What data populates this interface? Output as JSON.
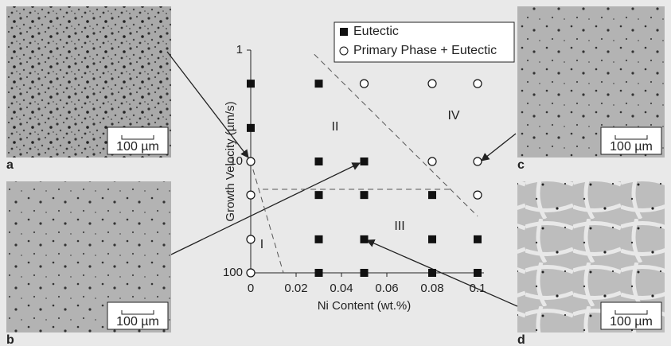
{
  "chart_data": {
    "type": "scatter",
    "xlabel": "Ni Content (wt.%)",
    "ylabel": "Growth Velocity (µm/s)",
    "xlim": [
      0,
      0.1
    ],
    "xticks": [
      0,
      0.02,
      0.04,
      0.06,
      0.08,
      0.1
    ],
    "ylim": [
      1,
      100
    ],
    "yticks": [
      1,
      10,
      100
    ],
    "y_log": true,
    "y_inverted": true,
    "legend": "top",
    "series": [
      {
        "name": "Eutectic",
        "color": "#111111",
        "marker": "square",
        "x": [
          0,
          0,
          0.03,
          0.03,
          0.05,
          0.03,
          0.05,
          0.08,
          0.03,
          0.05,
          0.08,
          0.1,
          0.03,
          0.05,
          0.08,
          0.1
        ],
        "values": [
          2,
          5,
          2,
          10,
          10,
          20,
          20,
          20,
          50,
          50,
          50,
          50,
          100,
          100,
          100,
          100
        ]
      },
      {
        "name": "Primary Phase + Eutectic",
        "color": "#111111",
        "marker": "circle",
        "x": [
          0,
          0,
          0,
          0,
          0.05,
          0.08,
          0.1,
          0.08,
          0.1,
          0.1
        ],
        "values": [
          10,
          20,
          50,
          100,
          2,
          2,
          2,
          10,
          10,
          20
        ]
      }
    ],
    "boundaries": [
      {
        "x": [
          0.001,
          0.0144
        ],
        "y": [
          11.8,
          100
        ]
      },
      {
        "x": [
          0.028,
          0.1
        ],
        "y": [
          1.09,
          31
        ]
      },
      {
        "x": [
          0.0053,
          0.0877
        ],
        "y": [
          17.8,
          17.8
        ]
      }
    ],
    "regions": [
      "I",
      "II",
      "III",
      "IV"
    ]
  },
  "panels": [
    {
      "label": "a",
      "scale_bar": "100 µm"
    },
    {
      "label": "b",
      "scale_bar": "100 µm"
    },
    {
      "label": "c",
      "scale_bar": "100 µm"
    },
    {
      "label": "d",
      "scale_bar": "100 µm"
    }
  ]
}
